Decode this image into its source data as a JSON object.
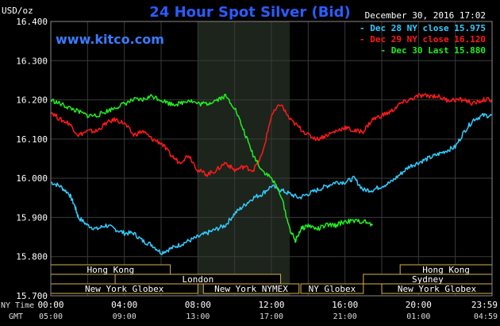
{
  "chart_data": {
    "type": "line",
    "title": "24 Hour Spot Silver (Bid)",
    "site": "www.kitco.com",
    "date_label": "December 30, 2016 17:02",
    "y_unit": "USD/oz",
    "ylim": [
      15.7,
      16.4
    ],
    "y_ticks": [
      "16.400",
      "16.300",
      "16.200",
      "16.100",
      "16.000",
      "15.900",
      "15.800",
      "15.700"
    ],
    "x_ticks_ny": [
      "00:00",
      "04:00",
      "08:00",
      "12:00",
      "16:00",
      "20:00",
      "23:59"
    ],
    "x_ticks_gmt": [
      "05:00",
      "09:00",
      "13:00",
      "17:00",
      "21:00",
      "01:00",
      "04:59"
    ],
    "x_axis_labels": {
      "ny": "NY Time",
      "gmt": "GMT"
    },
    "grid": true,
    "highlight_window": [
      8,
      13
    ],
    "legend_position": "top-right",
    "series": [
      {
        "name": "Dec 28 NY close 15.975",
        "color": "#33ccff",
        "points": [
          [
            0,
            15.99
          ],
          [
            0.5,
            15.98
          ],
          [
            1,
            15.96
          ],
          [
            1.3,
            15.93
          ],
          [
            1.5,
            15.9
          ],
          [
            2,
            15.88
          ],
          [
            2.5,
            15.87
          ],
          [
            3,
            15.88
          ],
          [
            3.5,
            15.87
          ],
          [
            4,
            15.86
          ],
          [
            4.5,
            15.86
          ],
          [
            5,
            15.84
          ],
          [
            5.5,
            15.83
          ],
          [
            6,
            15.81
          ],
          [
            6.5,
            15.82
          ],
          [
            7,
            15.83
          ],
          [
            7.5,
            15.84
          ],
          [
            8,
            15.85
          ],
          [
            8.5,
            15.86
          ],
          [
            9,
            15.87
          ],
          [
            9.5,
            15.88
          ],
          [
            10,
            15.91
          ],
          [
            10.5,
            15.93
          ],
          [
            11,
            15.95
          ],
          [
            11.5,
            15.96
          ],
          [
            12,
            15.98
          ],
          [
            12.5,
            15.97
          ],
          [
            13,
            15.96
          ],
          [
            13.5,
            15.95
          ],
          [
            14,
            15.96
          ],
          [
            14.5,
            15.97
          ],
          [
            15,
            15.98
          ],
          [
            15.5,
            15.99
          ],
          [
            16,
            15.99
          ],
          [
            16.5,
            16.0
          ],
          [
            17,
            15.97
          ],
          [
            17.5,
            15.97
          ],
          [
            18,
            15.98
          ],
          [
            18.5,
            15.99
          ],
          [
            19,
            16.01
          ],
          [
            19.5,
            16.03
          ],
          [
            20,
            16.04
          ],
          [
            20.5,
            16.05
          ],
          [
            21,
            16.06
          ],
          [
            21.5,
            16.07
          ],
          [
            22,
            16.08
          ],
          [
            22.5,
            16.12
          ],
          [
            23,
            16.15
          ],
          [
            23.5,
            16.16
          ],
          [
            23.98,
            16.16
          ]
        ]
      },
      {
        "name": "Dec 29 NY close 16.120",
        "color": "#ff1a1a",
        "points": [
          [
            0,
            16.17
          ],
          [
            0.5,
            16.15
          ],
          [
            1,
            16.14
          ],
          [
            1.5,
            16.11
          ],
          [
            2,
            16.12
          ],
          [
            2.5,
            16.12
          ],
          [
            3,
            16.14
          ],
          [
            3.5,
            16.15
          ],
          [
            4,
            16.14
          ],
          [
            4.5,
            16.11
          ],
          [
            5,
            16.12
          ],
          [
            5.5,
            16.1
          ],
          [
            6,
            16.09
          ],
          [
            6.5,
            16.06
          ],
          [
            7,
            16.04
          ],
          [
            7.5,
            16.06
          ],
          [
            8,
            16.02
          ],
          [
            8.5,
            16.01
          ],
          [
            9,
            16.02
          ],
          [
            9.5,
            16.04
          ],
          [
            10,
            16.02
          ],
          [
            10.5,
            16.03
          ],
          [
            11,
            16.02
          ],
          [
            11.5,
            16.06
          ],
          [
            12,
            16.16
          ],
          [
            12.5,
            16.19
          ],
          [
            13,
            16.15
          ],
          [
            13.5,
            16.13
          ],
          [
            14,
            16.11
          ],
          [
            14.5,
            16.1
          ],
          [
            15,
            16.11
          ],
          [
            15.5,
            16.12
          ],
          [
            16,
            16.13
          ],
          [
            16.5,
            16.12
          ],
          [
            17,
            16.12
          ],
          [
            17.5,
            16.15
          ],
          [
            18,
            16.16
          ],
          [
            18.5,
            16.17
          ],
          [
            19,
            16.19
          ],
          [
            19.5,
            16.2
          ],
          [
            20,
            16.21
          ],
          [
            20.5,
            16.21
          ],
          [
            21,
            16.21
          ],
          [
            21.5,
            16.2
          ],
          [
            22,
            16.2
          ],
          [
            22.5,
            16.2
          ],
          [
            23,
            16.19
          ],
          [
            23.5,
            16.2
          ],
          [
            23.98,
            16.2
          ]
        ]
      },
      {
        "name": "Dec 30 Last 15.880",
        "color": "#22ee22",
        "points": [
          [
            0,
            16.2
          ],
          [
            0.5,
            16.19
          ],
          [
            1,
            16.18
          ],
          [
            1.5,
            16.17
          ],
          [
            2,
            16.16
          ],
          [
            2.5,
            16.16
          ],
          [
            3,
            16.17
          ],
          [
            3.5,
            16.18
          ],
          [
            4,
            16.19
          ],
          [
            4.5,
            16.2
          ],
          [
            5,
            16.2
          ],
          [
            5.5,
            16.21
          ],
          [
            6,
            16.2
          ],
          [
            6.5,
            16.19
          ],
          [
            7,
            16.19
          ],
          [
            7.5,
            16.2
          ],
          [
            8,
            16.19
          ],
          [
            8.5,
            16.19
          ],
          [
            9,
            16.2
          ],
          [
            9.5,
            16.21
          ],
          [
            10,
            16.18
          ],
          [
            10.5,
            16.12
          ],
          [
            11,
            16.06
          ],
          [
            11.5,
            16.02
          ],
          [
            12,
            16.0
          ],
          [
            12.5,
            15.96
          ],
          [
            13,
            15.87
          ],
          [
            13.3,
            15.84
          ],
          [
            13.6,
            15.87
          ],
          [
            14,
            15.88
          ],
          [
            14.5,
            15.87
          ],
          [
            15,
            15.88
          ],
          [
            15.5,
            15.88
          ],
          [
            16,
            15.89
          ],
          [
            16.5,
            15.89
          ],
          [
            17,
            15.89
          ],
          [
            17.5,
            15.88
          ]
        ]
      }
    ],
    "sessions": [
      {
        "name": "Hong Kong",
        "row": 0,
        "start": 0,
        "end": 6.5
      },
      {
        "name": "Hong Kong",
        "row": 0,
        "start": 19,
        "end": 24
      },
      {
        "name": "London",
        "row": 1,
        "start": 3.5,
        "end": 12.5
      },
      {
        "name": "Sydney",
        "row": 1,
        "start": 17,
        "end": 24
      },
      {
        "name": "New York Globex",
        "row": 2,
        "start": 0,
        "end": 8
      },
      {
        "name": "New York NYMEX",
        "row": 2,
        "start": 8.3,
        "end": 13.5
      },
      {
        "name": "NY Globex",
        "row": 2,
        "start": 13.6,
        "end": 17
      },
      {
        "name": "New York Globex",
        "row": 2,
        "start": 18,
        "end": 24
      }
    ]
  }
}
